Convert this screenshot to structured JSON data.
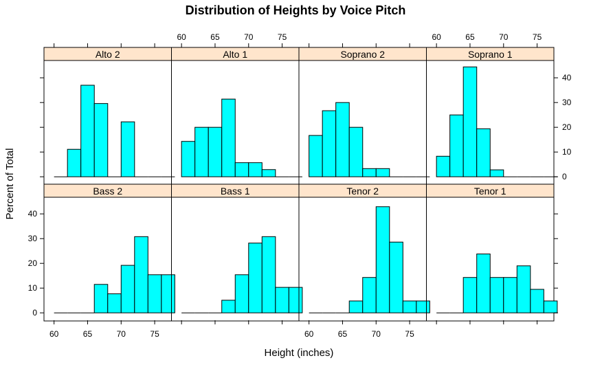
{
  "chart_data": {
    "type": "bar",
    "title": "Distribution of Heights by Voice Pitch",
    "xlabel": "Height (inches)",
    "ylabel": "Percent of Total",
    "xlim": [
      58.5,
      77.5
    ],
    "ylim": [
      -3,
      47
    ],
    "x_ticks": [
      60,
      65,
      70,
      75
    ],
    "y_ticks": [
      0,
      10,
      20,
      30,
      40
    ],
    "bin_edges": [
      60,
      62,
      64,
      66,
      68,
      70,
      72,
      74,
      76
    ],
    "bar_color": "#00FFFF",
    "strip_color": "#FFE5CC",
    "panels": [
      {
        "name": "Alto 2",
        "values": [
          0,
          11.1,
          37,
          29.6,
          0,
          22.2,
          0,
          0,
          0
        ]
      },
      {
        "name": "Alto 1",
        "values": [
          14.3,
          20,
          20,
          31.4,
          5.7,
          5.7,
          2.9,
          0,
          0
        ]
      },
      {
        "name": "Soprano 2",
        "values": [
          16.7,
          26.7,
          30,
          20,
          3.3,
          3.3,
          0,
          0,
          0
        ]
      },
      {
        "name": "Soprano 1",
        "values": [
          8.3,
          25,
          44.4,
          19.4,
          2.8,
          0,
          0,
          0,
          0
        ]
      },
      {
        "name": "Bass 2",
        "values": [
          0,
          0,
          0,
          11.5,
          7.7,
          19.2,
          30.8,
          15.4,
          15.4
        ]
      },
      {
        "name": "Bass 1",
        "values": [
          0,
          0,
          0,
          5.1,
          15.4,
          28.2,
          30.8,
          10.3,
          10.3
        ]
      },
      {
        "name": "Tenor 2",
        "values": [
          0,
          0,
          0,
          4.8,
          14.3,
          42.9,
          28.6,
          4.8,
          4.8
        ]
      },
      {
        "name": "Tenor 1",
        "values": [
          0,
          0,
          14.3,
          23.8,
          14.3,
          14.3,
          19,
          9.5,
          4.8
        ]
      }
    ]
  }
}
